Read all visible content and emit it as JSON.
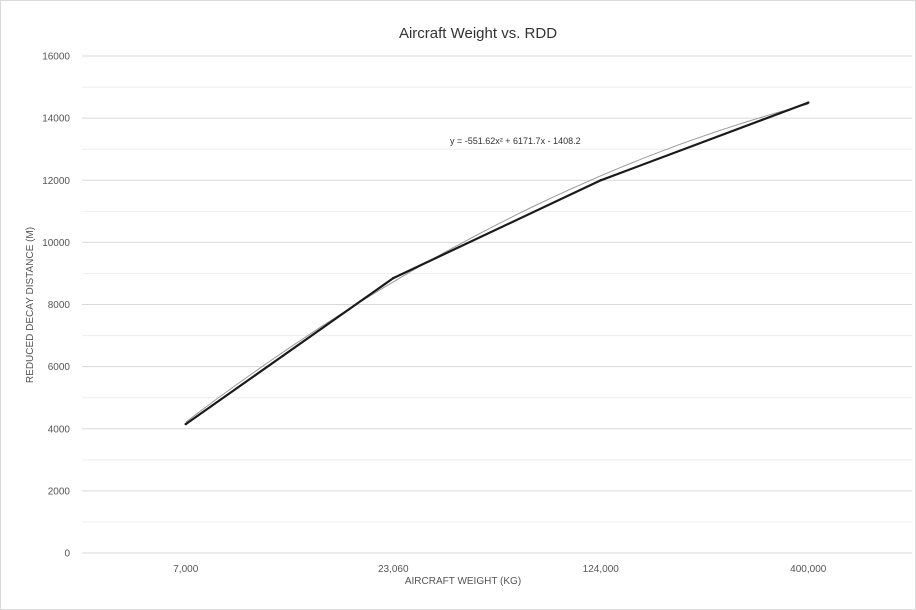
{
  "chart_data": {
    "type": "line",
    "title": "Aircraft Weight vs. RDD",
    "xlabel": "AIRCRAFT WEIGHT (KG)",
    "ylabel": "REDUCED DECAY DISTANCE (M)",
    "categories": [
      "7,000",
      "23,060",
      "124,000",
      "400,000"
    ],
    "series": [
      {
        "values": [
          4150,
          8850,
          12000,
          14500
        ],
        "color": "#1a1a1a"
      }
    ],
    "trendline": {
      "type": "polynomial",
      "order": 2,
      "coefficients": [
        -551.62,
        6171.7,
        -1408.2
      ],
      "color": "#9a9a9a",
      "label": "y = -551.62x² + 6171.7x - 1408.2"
    },
    "ylim": [
      0,
      16000
    ],
    "yticks": [
      0,
      2000,
      4000,
      6000,
      8000,
      10000,
      12000,
      14000,
      16000
    ],
    "y_minor_step": 1000,
    "grid": true,
    "legend": "none"
  }
}
